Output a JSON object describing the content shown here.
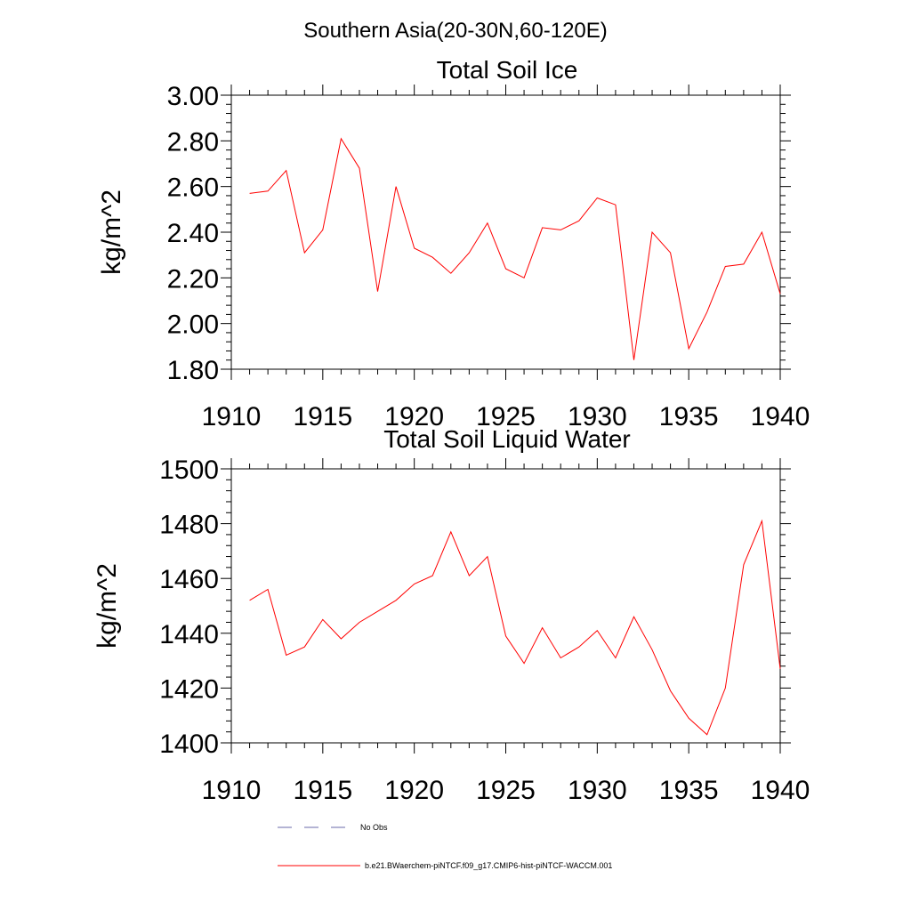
{
  "figure": {
    "title": "Southern Asia(20-30N,60-120E)"
  },
  "chart_data": [
    {
      "type": "line",
      "title": "Total Soil Ice",
      "xlabel": "",
      "ylabel": "kg/m^2",
      "xlim": [
        1910,
        1940
      ],
      "ylim": [
        1.8,
        3.0
      ],
      "xticks": [
        "1910",
        "1915",
        "1920",
        "1925",
        "1930",
        "1935",
        "1940"
      ],
      "yticks": [
        "1.80",
        "2.00",
        "2.20",
        "2.40",
        "2.60",
        "2.80",
        "3.00"
      ],
      "grid": false,
      "series": [
        {
          "name": "b.e21.BWaerchem-piNTCF.f09_g17.CMIP6-hist-piNTCF-WACCM.001",
          "color": "#ff0000",
          "x": [
            1911,
            1912,
            1913,
            1914,
            1915,
            1916,
            1917,
            1918,
            1919,
            1920,
            1921,
            1922,
            1923,
            1924,
            1925,
            1926,
            1927,
            1928,
            1929,
            1930,
            1931,
            1932,
            1933,
            1934,
            1935,
            1936,
            1937,
            1938,
            1939,
            1940
          ],
          "values": [
            2.57,
            2.58,
            2.67,
            2.31,
            2.41,
            2.81,
            2.68,
            2.14,
            2.6,
            2.33,
            2.29,
            2.22,
            2.31,
            2.44,
            2.24,
            2.2,
            2.42,
            2.41,
            2.45,
            2.55,
            2.52,
            1.84,
            2.4,
            2.31,
            1.89,
            2.05,
            2.25,
            2.26,
            2.4,
            2.13
          ]
        }
      ]
    },
    {
      "type": "line",
      "title": "Total Soil Liquid Water",
      "xlabel": "",
      "ylabel": "kg/m^2",
      "xlim": [
        1910,
        1940
      ],
      "ylim": [
        1400,
        1500
      ],
      "xticks": [
        "1910",
        "1915",
        "1920",
        "1925",
        "1930",
        "1935",
        "1940"
      ],
      "yticks": [
        "1400",
        "1420",
        "1440",
        "1460",
        "1480",
        "1500"
      ],
      "grid": false,
      "series": [
        {
          "name": "b.e21.BWaerchem-piNTCF.f09_g17.CMIP6-hist-piNTCF-WACCM.001",
          "color": "#ff0000",
          "x": [
            1911,
            1912,
            1913,
            1914,
            1915,
            1916,
            1917,
            1918,
            1919,
            1920,
            1921,
            1922,
            1923,
            1924,
            1925,
            1926,
            1927,
            1928,
            1929,
            1930,
            1931,
            1932,
            1933,
            1934,
            1935,
            1936,
            1937,
            1938,
            1939,
            1940
          ],
          "values": [
            1452,
            1456,
            1432,
            1435,
            1445,
            1438,
            1444,
            1448,
            1452,
            1458,
            1461,
            1477,
            1461,
            1468,
            1439,
            1429,
            1442,
            1431,
            1435,
            1441,
            1431,
            1446,
            1434,
            1419,
            1409,
            1403,
            1420,
            1465,
            1481,
            1427
          ]
        }
      ]
    }
  ],
  "legend": {
    "placement": "bottom",
    "entries": [
      {
        "label": "No Obs",
        "color": "#6a6aa8",
        "style": "dashed"
      },
      {
        "label": "b.e21.BWaerchem-piNTCF.f09_g17.CMIP6-hist-piNTCF-WACCM.001",
        "color": "#ff0000",
        "style": "solid"
      }
    ]
  }
}
